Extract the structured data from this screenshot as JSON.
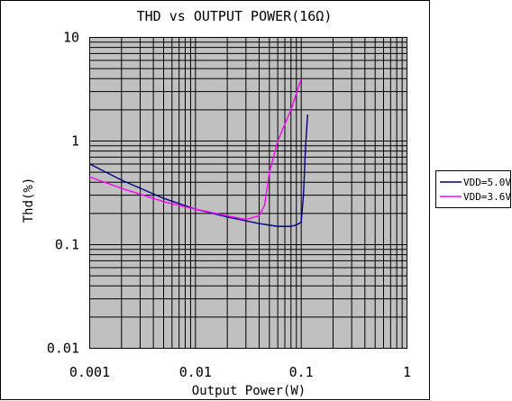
{
  "chart_data": {
    "type": "line",
    "title": "THD vs OUTPUT POWER(16Ω)",
    "xlabel": "Output Power(W)",
    "ylabel": "Thd(%)",
    "x_scale": "log",
    "y_scale": "log",
    "xlim": [
      0.001,
      1
    ],
    "ylim": [
      0.01,
      10
    ],
    "x_tick_labels": [
      "0.001",
      "0.01",
      "0.1",
      "1"
    ],
    "y_tick_labels": [
      "10",
      "1",
      "0.1",
      "0.01"
    ],
    "grid": true,
    "legend_position": "right",
    "series": [
      {
        "name": "VDD=5.0V",
        "color": "#000080",
        "points": [
          [
            0.001,
            0.6
          ],
          [
            0.002,
            0.42
          ],
          [
            0.005,
            0.28
          ],
          [
            0.01,
            0.22
          ],
          [
            0.02,
            0.185
          ],
          [
            0.04,
            0.16
          ],
          [
            0.06,
            0.15
          ],
          [
            0.08,
            0.15
          ],
          [
            0.09,
            0.155
          ],
          [
            0.1,
            0.165
          ],
          [
            0.105,
            0.3
          ],
          [
            0.11,
            0.9
          ],
          [
            0.115,
            1.8
          ]
        ]
      },
      {
        "name": "VDD=3.6V",
        "color": "#ff00ff",
        "points": [
          [
            0.001,
            0.45
          ],
          [
            0.002,
            0.35
          ],
          [
            0.005,
            0.26
          ],
          [
            0.01,
            0.22
          ],
          [
            0.02,
            0.19
          ],
          [
            0.03,
            0.175
          ],
          [
            0.04,
            0.19
          ],
          [
            0.045,
            0.24
          ],
          [
            0.05,
            0.5
          ],
          [
            0.06,
            1.0
          ],
          [
            0.08,
            2.0
          ],
          [
            0.1,
            4.0
          ]
        ]
      }
    ]
  }
}
